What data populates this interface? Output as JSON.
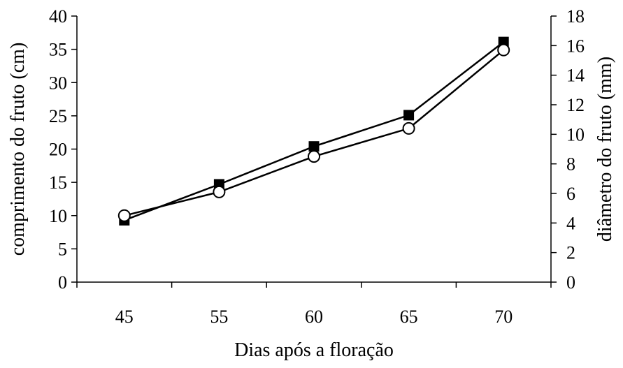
{
  "chart_data": {
    "type": "line",
    "categories": [
      "45",
      "55",
      "60",
      "65",
      "70"
    ],
    "xlabel": "Dias após a floração",
    "ylabel_left": "comprimento do fruto (cm)",
    "ylabel_right": "diâmetro do fruto (mm)",
    "y_left": {
      "ylim": [
        0,
        40
      ],
      "ticks": [
        0,
        5,
        10,
        15,
        20,
        25,
        30,
        35,
        40
      ]
    },
    "y_right": {
      "ylim": [
        0,
        18
      ],
      "ticks": [
        0,
        2,
        4,
        6,
        8,
        10,
        12,
        14,
        16,
        18
      ]
    },
    "series": [
      {
        "marker": "filled-square",
        "axis": "left",
        "values": [
          9.3,
          14.7,
          20.4,
          25.1,
          36.1
        ]
      },
      {
        "marker": "open-circle",
        "axis": "right",
        "values": [
          4.5,
          6.1,
          8.5,
          10.4,
          15.7
        ]
      }
    ],
    "grid": false,
    "legend": "none"
  }
}
